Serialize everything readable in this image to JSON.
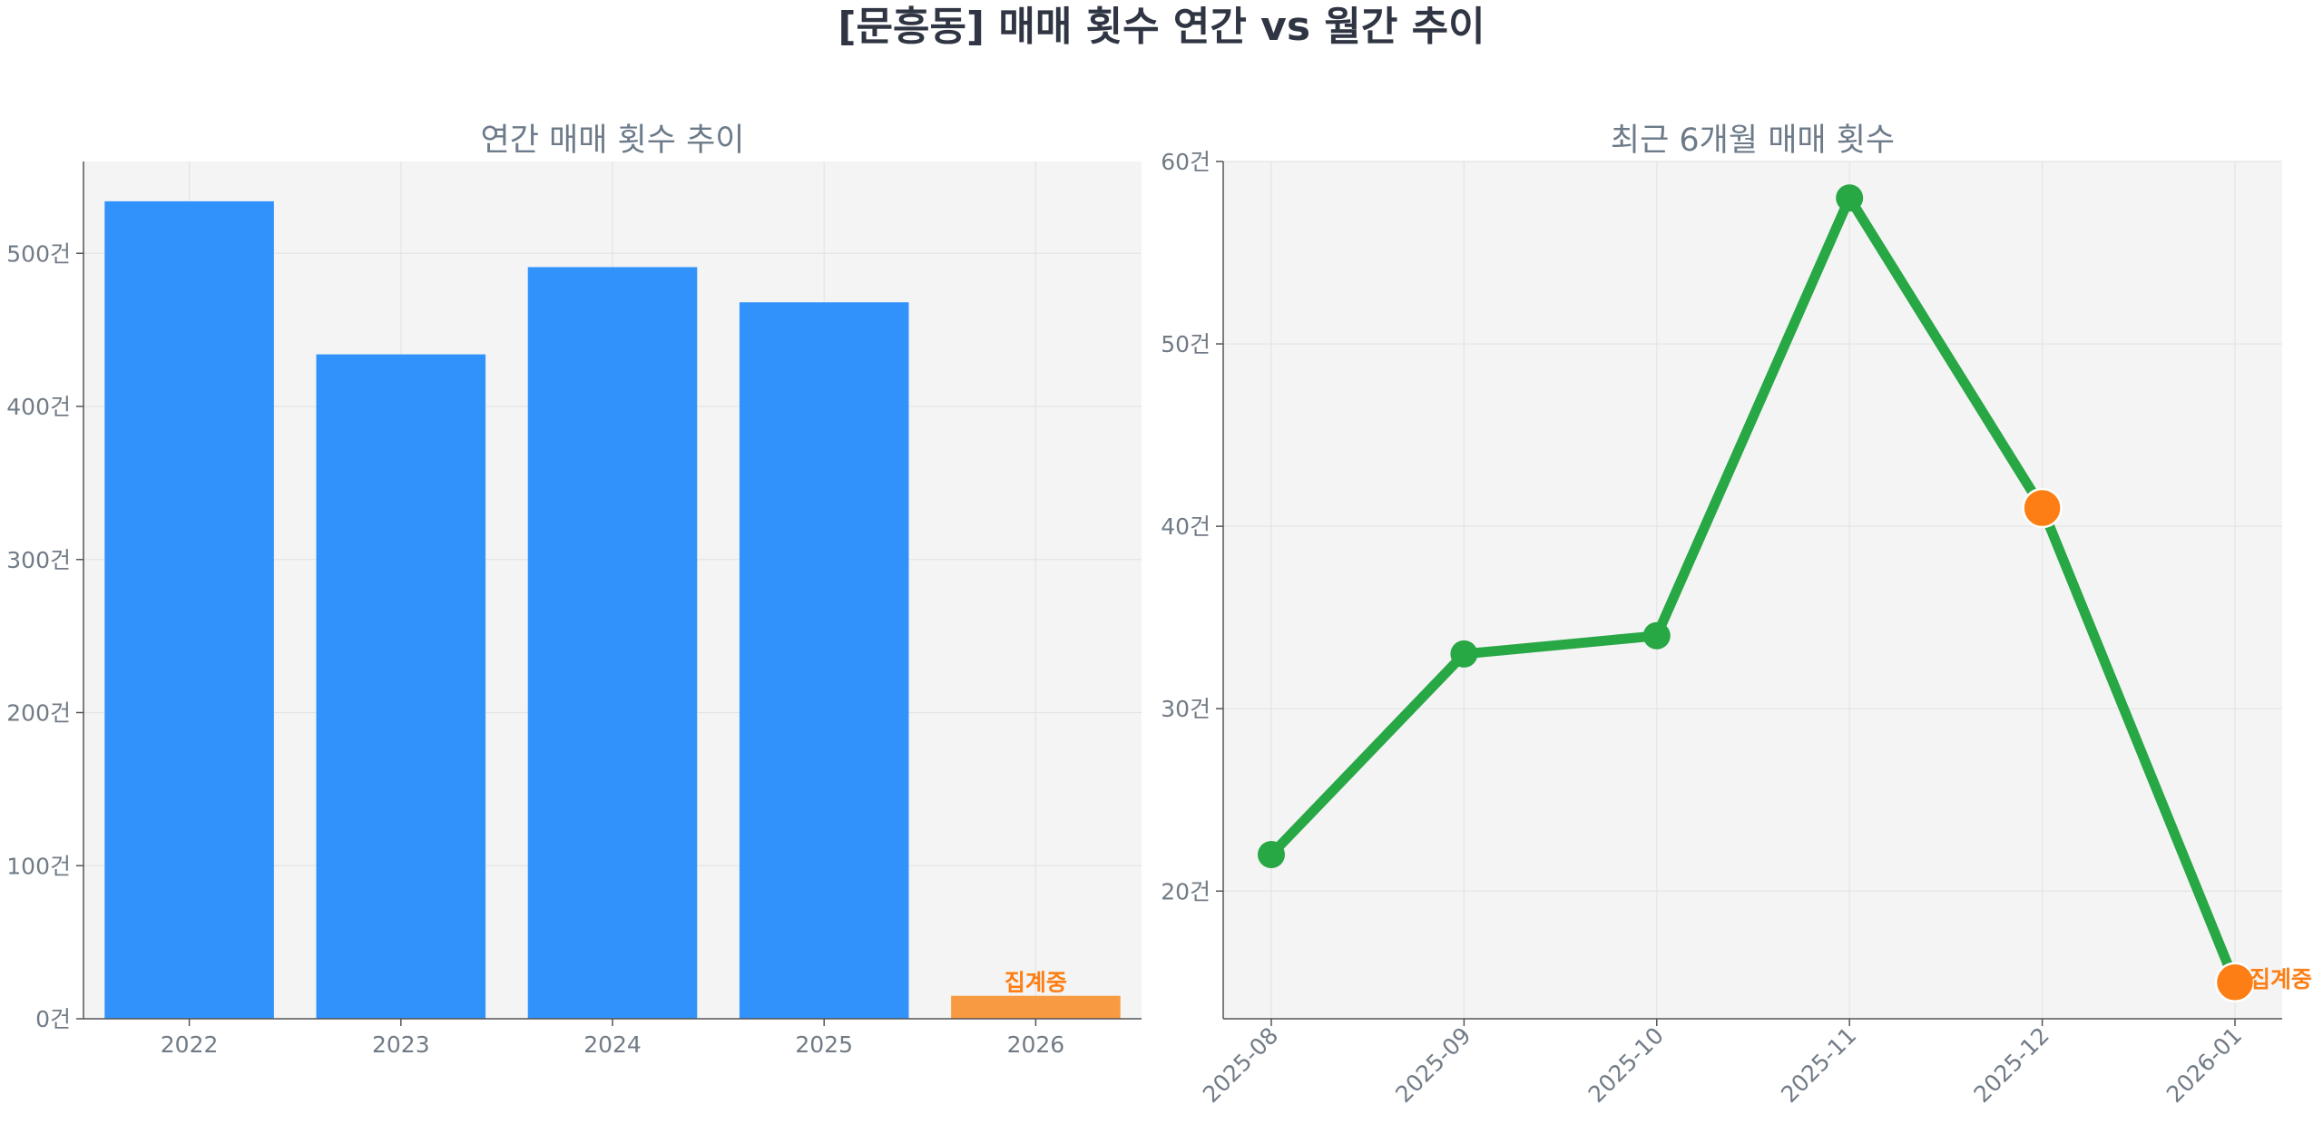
{
  "figure": {
    "title": "[문흥동] 매매 횟수 연간 vs 월간 추이"
  },
  "colors": {
    "bar_primary": "#3192fb",
    "bar_highlight": "#f89a42",
    "line": "#28a745",
    "marker_highlight": "#fd7e14",
    "annotation": "#fd7e14",
    "plot_bg": "#f4f4f4",
    "grid": "#e4e4e4",
    "axis": "#555555",
    "tick_label": "#717b86",
    "title": "#6c7a89",
    "suptitle": "#2f3542"
  },
  "chart_data": [
    {
      "type": "bar",
      "title": "연간 매매 횟수 추이",
      "xlabel": "",
      "ylabel": "",
      "categories": [
        "2022",
        "2023",
        "2024",
        "2025",
        "2026"
      ],
      "values": [
        534,
        434,
        491,
        468,
        15
      ],
      "highlight": [
        false,
        false,
        false,
        false,
        true
      ],
      "ylim": [
        0,
        560
      ],
      "yticks": [
        0,
        100,
        200,
        300,
        400,
        500
      ],
      "ytick_labels": [
        "0건",
        "100건",
        "200건",
        "300건",
        "400건",
        "500건"
      ],
      "annotations": [
        {
          "category": "2026",
          "text": "집계중"
        }
      ],
      "grid": true
    },
    {
      "type": "line",
      "title": "최근 6개월 매매 횟수",
      "xlabel": "",
      "ylabel": "",
      "categories": [
        "2025-08",
        "2025-09",
        "2025-10",
        "2025-11",
        "2025-12",
        "2026-01"
      ],
      "values": [
        22,
        33,
        34,
        58,
        41,
        15
      ],
      "highlight": [
        false,
        false,
        false,
        false,
        true,
        true
      ],
      "ylim": [
        13,
        60
      ],
      "yticks": [
        20,
        30,
        40,
        50,
        60
      ],
      "ytick_labels": [
        "20건",
        "30건",
        "40건",
        "50건",
        "60건"
      ],
      "annotations": [
        {
          "category": "2026-01",
          "text": "집계중"
        }
      ],
      "grid": true
    }
  ]
}
